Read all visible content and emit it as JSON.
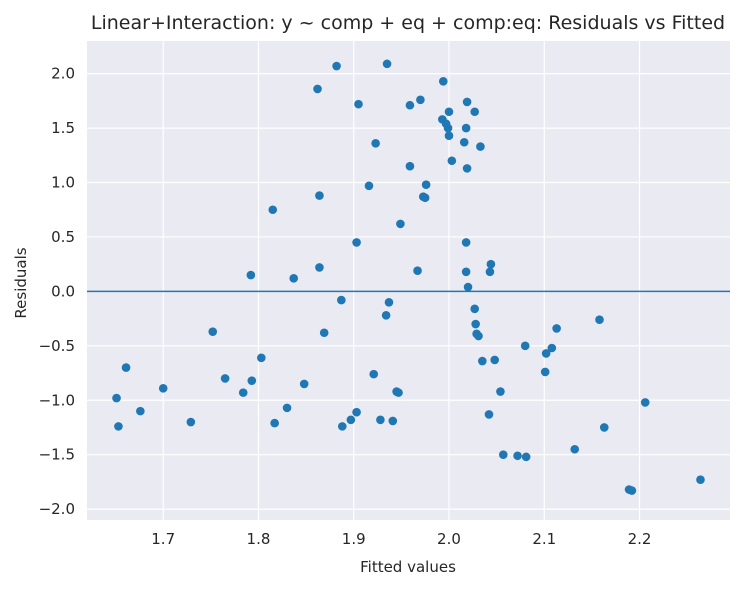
{
  "chart_data": {
    "type": "scatter",
    "title": "Linear+Interaction: y ~ comp + eq + comp:eq: Residuals vs Fitted",
    "xlabel": "Fitted values",
    "ylabel": "Residuals",
    "xlim": [
      1.62,
      2.295
    ],
    "ylim": [
      -2.1,
      2.3
    ],
    "x_ticks": [
      1.7,
      1.8,
      1.9,
      2.0,
      2.1,
      2.2
    ],
    "x_tick_labels": [
      "1.7",
      "1.8",
      "1.9",
      "2.0",
      "2.1",
      "2.2"
    ],
    "y_ticks": [
      -2.0,
      -1.5,
      -1.0,
      -0.5,
      0.0,
      0.5,
      1.0,
      1.5,
      2.0
    ],
    "y_tick_labels": [
      "−2.0",
      "−1.5",
      "−1.0",
      "−0.5",
      "0.0",
      "0.5",
      "1.0",
      "1.5",
      "2.0"
    ],
    "grid": true,
    "reference_line_y": 0,
    "colors": {
      "points": "#1f77b4",
      "ref_line": "#1f77b4",
      "background": "#eaeaf2",
      "grid": "#ffffff",
      "text": "#262626"
    },
    "points": [
      [
        1.651,
        -0.98
      ],
      [
        1.653,
        -1.24
      ],
      [
        1.661,
        -0.7
      ],
      [
        1.676,
        -1.1
      ],
      [
        1.7,
        -0.89
      ],
      [
        1.729,
        -1.2
      ],
      [
        1.752,
        -0.37
      ],
      [
        1.765,
        -0.8
      ],
      [
        1.784,
        -0.93
      ],
      [
        1.792,
        0.15
      ],
      [
        1.793,
        -0.82
      ],
      [
        1.803,
        -0.61
      ],
      [
        1.815,
        0.75
      ],
      [
        1.817,
        -1.21
      ],
      [
        1.83,
        -1.07
      ],
      [
        1.837,
        0.12
      ],
      [
        1.848,
        -0.85
      ],
      [
        1.862,
        1.86
      ],
      [
        1.864,
        0.88
      ],
      [
        1.864,
        0.22
      ],
      [
        1.869,
        -0.38
      ],
      [
        1.882,
        2.07
      ],
      [
        1.887,
        -0.08
      ],
      [
        1.888,
        -1.24
      ],
      [
        1.897,
        -1.18
      ],
      [
        1.903,
        -1.11
      ],
      [
        1.903,
        0.45
      ],
      [
        1.905,
        1.72
      ],
      [
        1.916,
        0.97
      ],
      [
        1.921,
        -0.76
      ],
      [
        1.923,
        1.36
      ],
      [
        1.928,
        -1.18
      ],
      [
        1.934,
        -0.22
      ],
      [
        1.935,
        2.09
      ],
      [
        1.937,
        -0.1
      ],
      [
        1.941,
        -1.19
      ],
      [
        1.945,
        -0.92
      ],
      [
        1.947,
        -0.93
      ],
      [
        1.949,
        0.62
      ],
      [
        1.959,
        1.71
      ],
      [
        1.959,
        1.15
      ],
      [
        1.967,
        0.19
      ],
      [
        1.97,
        1.76
      ],
      [
        1.973,
        0.87
      ],
      [
        1.975,
        0.86
      ],
      [
        1.976,
        0.98
      ],
      [
        1.993,
        1.58
      ],
      [
        1.994,
        1.93
      ],
      [
        1.997,
        1.54
      ],
      [
        1.999,
        1.5
      ],
      [
        2.0,
        1.65
      ],
      [
        2.0,
        1.43
      ],
      [
        2.003,
        1.2
      ],
      [
        2.016,
        1.37
      ],
      [
        2.018,
        1.5
      ],
      [
        2.018,
        0.45
      ],
      [
        2.018,
        0.18
      ],
      [
        2.019,
        1.13
      ],
      [
        2.019,
        1.74
      ],
      [
        2.02,
        0.04
      ],
      [
        2.027,
        1.65
      ],
      [
        2.027,
        -0.16
      ],
      [
        2.028,
        -0.3
      ],
      [
        2.029,
        -0.39
      ],
      [
        2.031,
        -0.41
      ],
      [
        2.033,
        1.33
      ],
      [
        2.035,
        -0.64
      ],
      [
        2.042,
        -1.13
      ],
      [
        2.043,
        0.18
      ],
      [
        2.044,
        0.25
      ],
      [
        2.048,
        -0.63
      ],
      [
        2.054,
        -0.92
      ],
      [
        2.057,
        -1.5
      ],
      [
        2.072,
        -1.51
      ],
      [
        2.08,
        -0.5
      ],
      [
        2.081,
        -1.52
      ],
      [
        2.101,
        -0.74
      ],
      [
        2.102,
        -0.57
      ],
      [
        2.108,
        -0.52
      ],
      [
        2.113,
        -0.34
      ],
      [
        2.132,
        -1.45
      ],
      [
        2.158,
        -0.26
      ],
      [
        2.163,
        -1.25
      ],
      [
        2.189,
        -1.82
      ],
      [
        2.192,
        -1.83
      ],
      [
        2.206,
        -1.02
      ],
      [
        2.264,
        -1.73
      ]
    ]
  }
}
